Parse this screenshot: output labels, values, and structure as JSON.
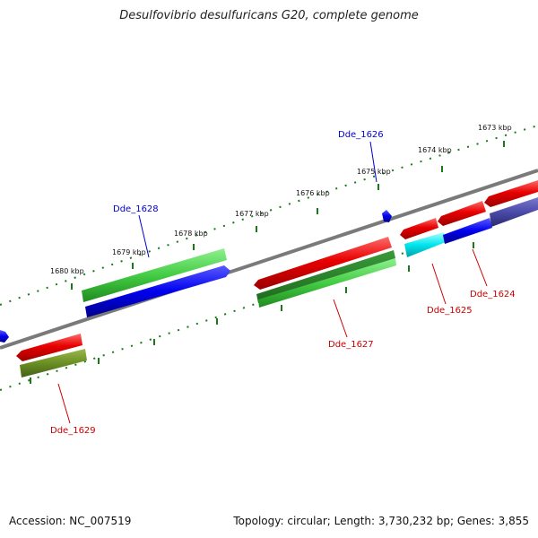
{
  "title": "Desulfovibrio desulfuricans G20, complete genome",
  "footer": {
    "accession": "Accession: NC_007519",
    "summary": "Topology: circular; Length: 3,730,232 bp; Genes: 3,855"
  },
  "ruler_labels": [
    "1673 kbp",
    "1674 kbp",
    "1675 kbp",
    "1676 kbp",
    "1677 kbp",
    "1678 kbp",
    "1679 kbp",
    "1680 kbp"
  ],
  "gene_labels": {
    "dde_1626": "Dde_1626",
    "dde_1628": "Dde_1628",
    "dde_1627": "Dde_1627",
    "dde_1625": "Dde_1625",
    "dde_1624": "Dde_1624",
    "dde_1629": "Dde_1629"
  },
  "colors": {
    "red": "#e80000",
    "green": "#44cc44",
    "dark_green": "#2a8a2a",
    "blue": "#0000ee",
    "olive": "#6b8e23",
    "cyan": "#00e5ee",
    "slate": "#4a4aa8",
    "backbone": "#8a8a8a",
    "ruler": "#1a7a1a",
    "label_red": "#cc0000",
    "label_blue": "#0000cc"
  }
}
